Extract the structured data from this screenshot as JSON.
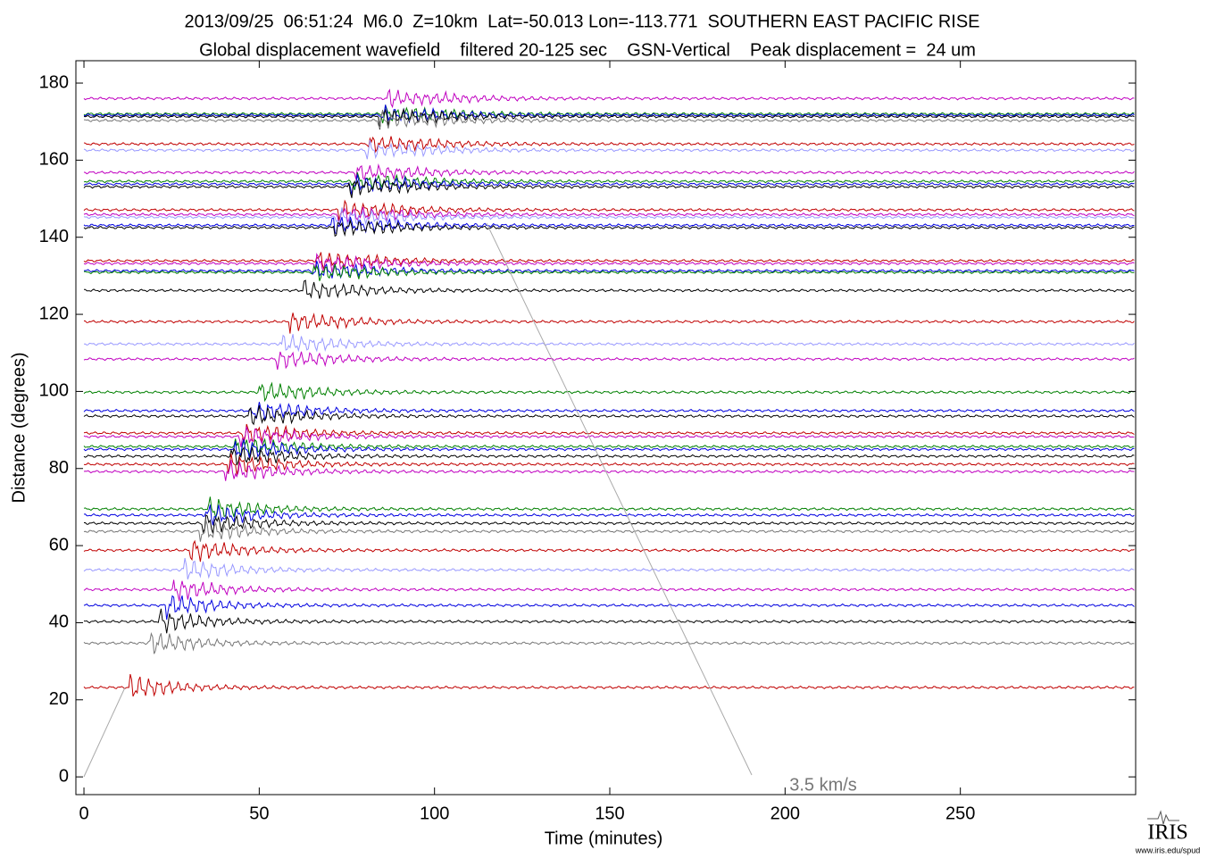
{
  "chart_data": {
    "type": "record-section",
    "title": "2013/09/25  06:51:24  M6.0  Z=10km  Lat=-50.013 Lon=-113.771  SOUTHERN EAST PACIFIC RISE",
    "subtitle": "Global displacement wavefield    filtered 20-125 sec    GSN-Vertical    Peak displacement =  24 um",
    "x_label": "Time (minutes)",
    "y_label": "Distance (degrees)",
    "annotation": "3.5 km/s",
    "logo": "IRIS",
    "logo_url": "www.iris.edu/spud",
    "xlim": [
      -2.3,
      300
    ],
    "xticks": [
      0,
      50,
      100,
      150,
      200,
      250
    ],
    "ylim": [
      -4.6,
      185.8
    ],
    "yticks": [
      0,
      20,
      40,
      60,
      80,
      100,
      120,
      140,
      160,
      180
    ],
    "traces": [
      {
        "distance": 176,
        "color": "#c000c0"
      },
      {
        "distance": 172,
        "color": "#008000"
      },
      {
        "distance": 171.7,
        "color": "#0000e0"
      },
      {
        "distance": 171.3,
        "color": "#000000"
      },
      {
        "distance": 170.3,
        "color": "#777777"
      },
      {
        "distance": 164.2,
        "color": "#c00000"
      },
      {
        "distance": 162.6,
        "color": "#9999ff"
      },
      {
        "distance": 156.8,
        "color": "#c000c0"
      },
      {
        "distance": 154.5,
        "color": "#008000"
      },
      {
        "distance": 153.8,
        "color": "#0000e0"
      },
      {
        "distance": 153.1,
        "color": "#000000"
      },
      {
        "distance": 147.1,
        "color": "#c00000"
      },
      {
        "distance": 145.9,
        "color": "#c000c0"
      },
      {
        "distance": 145.2,
        "color": "#9999ff"
      },
      {
        "distance": 143.1,
        "color": "#0000e0"
      },
      {
        "distance": 142.5,
        "color": "#000000"
      },
      {
        "distance": 133.9,
        "color": "#c00000"
      },
      {
        "distance": 133.2,
        "color": "#c000c0"
      },
      {
        "distance": 131.3,
        "color": "#0000e0"
      },
      {
        "distance": 130.9,
        "color": "#008000"
      },
      {
        "distance": 126.2,
        "color": "#000000"
      },
      {
        "distance": 118.1,
        "color": "#c00000"
      },
      {
        "distance": 112.3,
        "color": "#9999ff"
      },
      {
        "distance": 108.4,
        "color": "#c000c0"
      },
      {
        "distance": 99.8,
        "color": "#008000"
      },
      {
        "distance": 95,
        "color": "#0000e0"
      },
      {
        "distance": 93.6,
        "color": "#000000"
      },
      {
        "distance": 89.2,
        "color": "#c00000"
      },
      {
        "distance": 88.3,
        "color": "#c000c0"
      },
      {
        "distance": 85.7,
        "color": "#008000"
      },
      {
        "distance": 85,
        "color": "#0000e0"
      },
      {
        "distance": 83.2,
        "color": "#000000"
      },
      {
        "distance": 81.1,
        "color": "#c00000"
      },
      {
        "distance": 79.2,
        "color": "#c000c0"
      },
      {
        "distance": 69.5,
        "color": "#008000"
      },
      {
        "distance": 67.9,
        "color": "#0000e0"
      },
      {
        "distance": 65.8,
        "color": "#000000"
      },
      {
        "distance": 63.7,
        "color": "#777777"
      },
      {
        "distance": 58.8,
        "color": "#c00000"
      },
      {
        "distance": 53.7,
        "color": "#9999ff"
      },
      {
        "distance": 48.6,
        "color": "#c000c0"
      },
      {
        "distance": 44.5,
        "color": "#0000e0"
      },
      {
        "distance": 40.3,
        "color": "#000000"
      },
      {
        "distance": 34.7,
        "color": "#777777"
      },
      {
        "distance": 23.2,
        "color": "#c00000"
      }
    ]
  }
}
